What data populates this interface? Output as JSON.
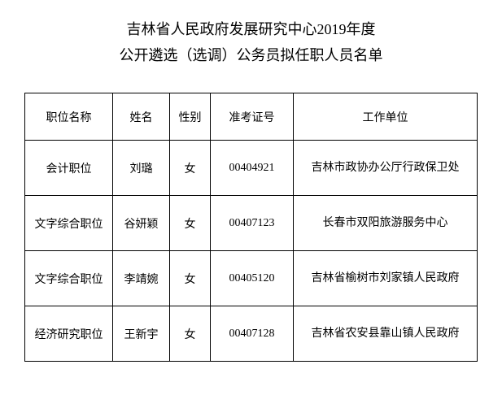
{
  "title": {
    "line1": "吉林省人民政府发展研究中心2019年度",
    "line2": "公开遴选（选调）公务员拟任职人员名单"
  },
  "table": {
    "columns": [
      {
        "key": "position",
        "label": "职位名称"
      },
      {
        "key": "name",
        "label": "姓名"
      },
      {
        "key": "gender",
        "label": "性别"
      },
      {
        "key": "exam_no",
        "label": "准考证号"
      },
      {
        "key": "work_unit",
        "label": "工作单位"
      }
    ],
    "rows": [
      {
        "position": "会计职位",
        "name": "刘璐",
        "gender": "女",
        "exam_no": "00404921",
        "work_unit": "吉林市政协办公厅行政保卫处"
      },
      {
        "position": "文字综合职位",
        "name": "谷妍颖",
        "gender": "女",
        "exam_no": "00407123",
        "work_unit": "长春市双阳旅游服务中心"
      },
      {
        "position": "文字综合职位",
        "name": "李靖婉",
        "gender": "女",
        "exam_no": "00405120",
        "work_unit": "吉林省榆树市刘家镇人民政府"
      },
      {
        "position": "经济研究职位",
        "name": "王新宇",
        "gender": "女",
        "exam_no": "00407128",
        "work_unit": "吉林省农安县靠山镇人民政府"
      }
    ]
  },
  "styling": {
    "background_color": "#ffffff",
    "text_color": "#000000",
    "border_color": "#000000",
    "title_fontsize": 18,
    "cell_fontsize": 14,
    "font_family": "SimSun"
  }
}
